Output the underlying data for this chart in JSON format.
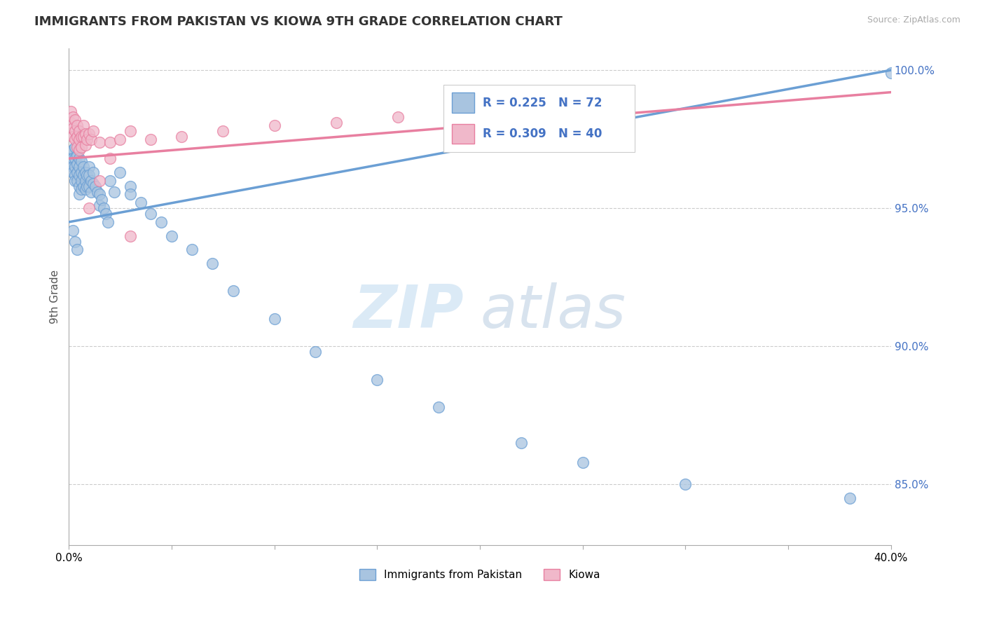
{
  "title": "IMMIGRANTS FROM PAKISTAN VS KIOWA 9TH GRADE CORRELATION CHART",
  "source": "Source: ZipAtlas.com",
  "ylabel": "9th Grade",
  "xlim": [
    0.0,
    0.4
  ],
  "ylim": [
    0.828,
    1.008
  ],
  "ytick_positions": [
    1.0,
    0.95,
    0.9,
    0.85
  ],
  "ytick_right_labels": [
    "100.0%",
    "95.0%",
    "90.0%",
    "85.0%"
  ],
  "legend_items": [
    {
      "color": "#a8c4e0",
      "edge": "#6b9fd4",
      "label": "Immigrants from Pakistan",
      "R": 0.225,
      "N": 72
    },
    {
      "color": "#f0a0b8",
      "edge": "#e87fa0",
      "label": "Kiowa",
      "R": 0.309,
      "N": 40
    }
  ],
  "blue_scatter_x": [
    0.001,
    0.001,
    0.001,
    0.002,
    0.002,
    0.002,
    0.002,
    0.003,
    0.003,
    0.003,
    0.003,
    0.003,
    0.004,
    0.004,
    0.004,
    0.004,
    0.005,
    0.005,
    0.005,
    0.005,
    0.005,
    0.006,
    0.006,
    0.006,
    0.006,
    0.007,
    0.007,
    0.007,
    0.008,
    0.008,
    0.008,
    0.009,
    0.009,
    0.01,
    0.01,
    0.01,
    0.011,
    0.011,
    0.012,
    0.012,
    0.013,
    0.014,
    0.015,
    0.015,
    0.016,
    0.017,
    0.018,
    0.019,
    0.02,
    0.022,
    0.025,
    0.03,
    0.03,
    0.035,
    0.04,
    0.045,
    0.05,
    0.06,
    0.07,
    0.08,
    0.1,
    0.12,
    0.15,
    0.18,
    0.22,
    0.25,
    0.3,
    0.38,
    0.4,
    0.002,
    0.003,
    0.004
  ],
  "blue_scatter_y": [
    0.97,
    0.968,
    0.966,
    0.971,
    0.968,
    0.965,
    0.963,
    0.972,
    0.968,
    0.965,
    0.962,
    0.96,
    0.969,
    0.966,
    0.963,
    0.96,
    0.968,
    0.965,
    0.962,
    0.958,
    0.955,
    0.967,
    0.963,
    0.96,
    0.957,
    0.965,
    0.962,
    0.958,
    0.963,
    0.96,
    0.957,
    0.962,
    0.958,
    0.965,
    0.962,
    0.958,
    0.96,
    0.956,
    0.963,
    0.959,
    0.958,
    0.956,
    0.955,
    0.951,
    0.953,
    0.95,
    0.948,
    0.945,
    0.96,
    0.956,
    0.963,
    0.958,
    0.955,
    0.952,
    0.948,
    0.945,
    0.94,
    0.935,
    0.93,
    0.92,
    0.91,
    0.898,
    0.888,
    0.878,
    0.865,
    0.858,
    0.85,
    0.845,
    0.999,
    0.942,
    0.938,
    0.935
  ],
  "pink_scatter_x": [
    0.001,
    0.001,
    0.002,
    0.002,
    0.002,
    0.003,
    0.003,
    0.003,
    0.004,
    0.004,
    0.004,
    0.005,
    0.005,
    0.005,
    0.006,
    0.006,
    0.007,
    0.007,
    0.008,
    0.008,
    0.009,
    0.01,
    0.011,
    0.012,
    0.015,
    0.02,
    0.025,
    0.03,
    0.04,
    0.055,
    0.075,
    0.1,
    0.13,
    0.16,
    0.2,
    0.25,
    0.01,
    0.015,
    0.02,
    0.03
  ],
  "pink_scatter_y": [
    0.985,
    0.981,
    0.983,
    0.979,
    0.976,
    0.982,
    0.978,
    0.975,
    0.98,
    0.976,
    0.972,
    0.978,
    0.975,
    0.971,
    0.976,
    0.972,
    0.98,
    0.976,
    0.977,
    0.973,
    0.975,
    0.977,
    0.975,
    0.978,
    0.974,
    0.974,
    0.975,
    0.978,
    0.975,
    0.976,
    0.978,
    0.98,
    0.981,
    0.983,
    0.984,
    0.987,
    0.95,
    0.96,
    0.968,
    0.94
  ],
  "blue_line_x": [
    0.0,
    0.4
  ],
  "blue_line_y": [
    0.945,
    1.0
  ],
  "pink_line_x": [
    0.0,
    0.4
  ],
  "pink_line_y": [
    0.968,
    0.992
  ],
  "blue_color": "#6b9fd4",
  "pink_color": "#e87fa0",
  "blue_fill": "#a8c4e0",
  "pink_fill": "#f0b8ca",
  "watermark_zip": "ZIP",
  "watermark_atlas": "atlas",
  "grid_color": "#cccccc",
  "title_color": "#333333",
  "title_fontsize": 13,
  "legend_R_N_color": "#4472c4",
  "legend_fontsize": 12
}
